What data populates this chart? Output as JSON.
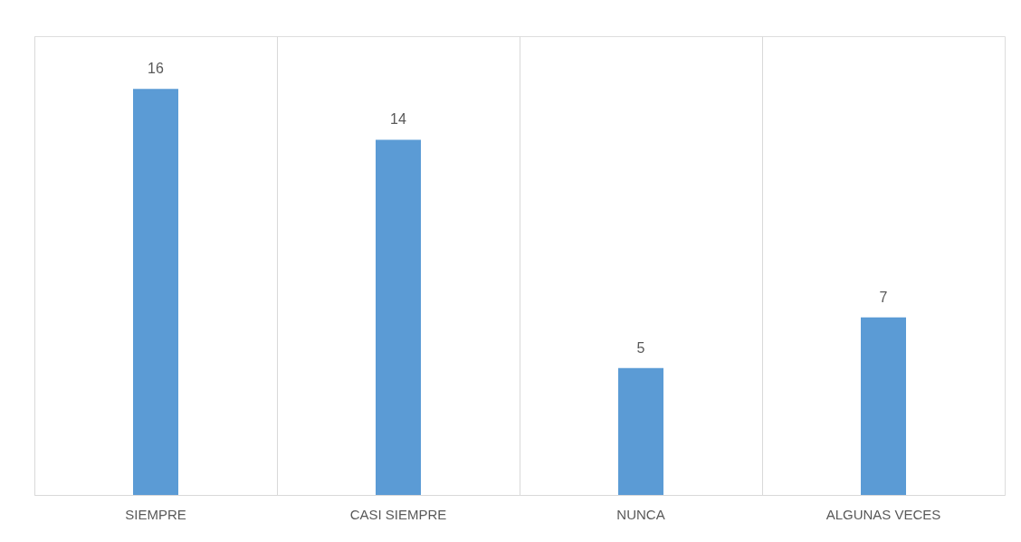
{
  "chart_data": {
    "type": "bar",
    "categories": [
      "SIEMPRE",
      "CASI SIEMPRE",
      "NUNCA",
      "ALGUNAS VECES"
    ],
    "values": [
      16,
      14,
      5,
      7
    ],
    "color": "#5b9bd5",
    "data_labels": true,
    "grid": "x"
  }
}
